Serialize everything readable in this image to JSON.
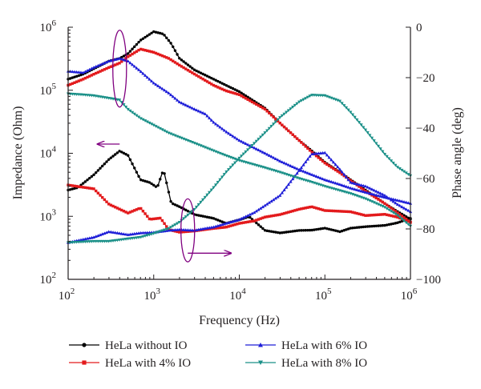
{
  "chart_data": {
    "type": "line",
    "xlabel": "Frequency (Hz)",
    "ylabel_left": "Impedance (Ohm)",
    "ylabel_right": "Phase angle (deg)",
    "x_scale": "log",
    "xlim": [
      100,
      1000000
    ],
    "ylim_left": [
      100,
      1000000
    ],
    "ylim_right": [
      -100,
      0
    ],
    "x_ticks": [
      {
        "value": 100,
        "base": "10",
        "exp": "2"
      },
      {
        "value": 1000,
        "base": "10",
        "exp": "3"
      },
      {
        "value": 10000,
        "base": "10",
        "exp": "4"
      },
      {
        "value": 100000,
        "base": "10",
        "exp": "5"
      },
      {
        "value": 1000000,
        "base": "10",
        "exp": "6"
      }
    ],
    "y_left_ticks": [
      {
        "value": 100,
        "base": "10",
        "exp": "2"
      },
      {
        "value": 1000,
        "base": "10",
        "exp": "3"
      },
      {
        "value": 10000,
        "base": "10",
        "exp": "4"
      },
      {
        "value": 100000,
        "base": "10",
        "exp": "5"
      },
      {
        "value": 1000000,
        "base": "10",
        "exp": "6"
      }
    ],
    "y_right_ticks": [
      {
        "value": 0,
        "label": "0"
      },
      {
        "value": -20,
        "label": "−20"
      },
      {
        "value": -40,
        "label": "−40"
      },
      {
        "value": -60,
        "label": "−60"
      },
      {
        "value": -80,
        "label": "−80"
      },
      {
        "value": -100,
        "label": "−100"
      }
    ],
    "grid": false,
    "legend_position": "bottom",
    "series": [
      {
        "name": "HeLa without IO",
        "color": "#000000",
        "marker": "circle",
        "impedance": [
          [
            100,
            150000
          ],
          [
            150,
            180000
          ],
          [
            200,
            220000
          ],
          [
            300,
            290000
          ],
          [
            400,
            320000
          ],
          [
            500,
            380000
          ],
          [
            700,
            620000
          ],
          [
            1000,
            850000
          ],
          [
            1300,
            780000
          ],
          [
            1600,
            550000
          ],
          [
            2000,
            320000
          ],
          [
            3000,
            210000
          ],
          [
            5000,
            150000
          ],
          [
            7000,
            120000
          ],
          [
            10000,
            95000
          ],
          [
            20000,
            52000
          ],
          [
            30000,
            30000
          ],
          [
            50000,
            16000
          ],
          [
            70000,
            11000
          ],
          [
            100000,
            7200
          ],
          [
            150000,
            5000
          ],
          [
            200000,
            3800
          ],
          [
            300000,
            2600
          ],
          [
            500000,
            1600
          ],
          [
            700000,
            1200
          ],
          [
            1000000,
            900
          ]
        ],
        "phase": [
          [
            100,
            -64.6
          ],
          [
            130,
            -63.6
          ],
          [
            200,
            -58.5
          ],
          [
            300,
            -52.4
          ],
          [
            400,
            -49.1
          ],
          [
            500,
            -50.8
          ],
          [
            700,
            -60.5
          ],
          [
            900,
            -61.6
          ],
          [
            1100,
            -63.6
          ],
          [
            1300,
            -56.4
          ],
          [
            1600,
            -69.7
          ],
          [
            2000,
            -71.2
          ],
          [
            3000,
            -74.3
          ],
          [
            5000,
            -75.8
          ],
          [
            7000,
            -77.8
          ],
          [
            10000,
            -76.4
          ],
          [
            13000,
            -75.1
          ],
          [
            20000,
            -80.6
          ],
          [
            30000,
            -81.6
          ],
          [
            50000,
            -80.6
          ],
          [
            70000,
            -80.5
          ],
          [
            100000,
            -79.7
          ],
          [
            150000,
            -81.1
          ],
          [
            200000,
            -79.7
          ],
          [
            300000,
            -79.1
          ],
          [
            500000,
            -78.6
          ],
          [
            700000,
            -77.6
          ],
          [
            1000000,
            -75.8
          ]
        ]
      },
      {
        "name": "HeLa with 4% IO",
        "color": "#e31a1c",
        "marker": "square",
        "impedance": [
          [
            100,
            120000
          ],
          [
            150,
            150000
          ],
          [
            200,
            180000
          ],
          [
            300,
            230000
          ],
          [
            400,
            270000
          ],
          [
            500,
            340000
          ],
          [
            700,
            450000
          ],
          [
            1000,
            400000
          ],
          [
            1500,
            320000
          ],
          [
            2000,
            250000
          ],
          [
            3000,
            180000
          ],
          [
            5000,
            120000
          ],
          [
            7000,
            98000
          ],
          [
            10000,
            85000
          ],
          [
            20000,
            50000
          ],
          [
            30000,
            30000
          ],
          [
            50000,
            16000
          ],
          [
            70000,
            10500
          ],
          [
            100000,
            7000
          ],
          [
            150000,
            4900
          ],
          [
            200000,
            3700
          ],
          [
            300000,
            2500
          ],
          [
            500000,
            1600
          ],
          [
            700000,
            1150
          ],
          [
            1000000,
            800
          ]
        ],
        "phase": [
          [
            100,
            -62.6
          ],
          [
            200,
            -64.1
          ],
          [
            300,
            -70.2
          ],
          [
            500,
            -73.7
          ],
          [
            700,
            -71.7
          ],
          [
            900,
            -76.2
          ],
          [
            1200,
            -75.7
          ],
          [
            1500,
            -80.3
          ],
          [
            2000,
            -81.3
          ],
          [
            3000,
            -80.8
          ],
          [
            5000,
            -79.8
          ],
          [
            7000,
            -79.3
          ],
          [
            10000,
            -77.8
          ],
          [
            15000,
            -76.8
          ],
          [
            20000,
            -75.3
          ],
          [
            30000,
            -74.3
          ],
          [
            50000,
            -72.2
          ],
          [
            70000,
            -71.2
          ],
          [
            100000,
            -72.7
          ],
          [
            200000,
            -73.2
          ],
          [
            300000,
            -74.7
          ],
          [
            500000,
            -74.2
          ],
          [
            700000,
            -75.3
          ],
          [
            1000000,
            -77.3
          ]
        ]
      },
      {
        "name": "HeLa with 6% IO",
        "color": "#1f1fd8",
        "marker": "triangle",
        "impedance": [
          [
            100,
            200000
          ],
          [
            150,
            190000
          ],
          [
            200,
            230000
          ],
          [
            300,
            290000
          ],
          [
            400,
            320000
          ],
          [
            500,
            290000
          ],
          [
            700,
            200000
          ],
          [
            1000,
            130000
          ],
          [
            1500,
            90000
          ],
          [
            2000,
            65000
          ],
          [
            3000,
            50000
          ],
          [
            4000,
            42000
          ],
          [
            5000,
            31000
          ],
          [
            7000,
            22000
          ],
          [
            10000,
            16000
          ],
          [
            20000,
            10000
          ],
          [
            30000,
            7500
          ],
          [
            50000,
            5500
          ],
          [
            70000,
            4600
          ],
          [
            100000,
            3800
          ],
          [
            150000,
            3200
          ],
          [
            200000,
            2800
          ],
          [
            300000,
            2400
          ],
          [
            500000,
            2000
          ],
          [
            700000,
            1800
          ],
          [
            1000000,
            1600
          ]
        ],
        "phase": [
          [
            100,
            -85.4
          ],
          [
            200,
            -83.3
          ],
          [
            300,
            -81.1
          ],
          [
            500,
            -82.3
          ],
          [
            700,
            -81.6
          ],
          [
            1000,
            -81.4
          ],
          [
            1500,
            -80.6
          ],
          [
            2000,
            -80.3
          ],
          [
            3000,
            -80.6
          ],
          [
            4000,
            -79.8
          ],
          [
            5000,
            -79.3
          ],
          [
            7000,
            -77.8
          ],
          [
            10000,
            -76.3
          ],
          [
            15000,
            -73.5
          ],
          [
            20000,
            -70.7
          ],
          [
            30000,
            -66.7
          ],
          [
            50000,
            -56.9
          ],
          [
            70000,
            -50.3
          ],
          [
            100000,
            -49.8
          ],
          [
            150000,
            -56.4
          ],
          [
            200000,
            -61.6
          ],
          [
            300000,
            -63.1
          ],
          [
            500000,
            -66.7
          ],
          [
            700000,
            -70.2
          ],
          [
            1000000,
            -73.2
          ]
        ]
      },
      {
        "name": "HeLa with 8% IO",
        "color": "#1b9088",
        "marker": "triangle-down",
        "impedance": [
          [
            100,
            88000
          ],
          [
            150,
            85000
          ],
          [
            200,
            82000
          ],
          [
            300,
            75000
          ],
          [
            400,
            70000
          ],
          [
            500,
            50000
          ],
          [
            700,
            36000
          ],
          [
            1000,
            28000
          ],
          [
            1500,
            21000
          ],
          [
            2000,
            18000
          ],
          [
            3000,
            14500
          ],
          [
            5000,
            11000
          ],
          [
            7000,
            9200
          ],
          [
            10000,
            7700
          ],
          [
            20000,
            5900
          ],
          [
            30000,
            5000
          ],
          [
            50000,
            4000
          ],
          [
            70000,
            3500
          ],
          [
            100000,
            3000
          ],
          [
            200000,
            2300
          ],
          [
            300000,
            1900
          ],
          [
            500000,
            1400
          ],
          [
            700000,
            1050
          ],
          [
            1000000,
            700
          ]
        ],
        "phase": [
          [
            100,
            -85.4
          ],
          [
            200,
            -84.9
          ],
          [
            300,
            -84.9
          ],
          [
            500,
            -83.9
          ],
          [
            700,
            -83.3
          ],
          [
            1000,
            -81.8
          ],
          [
            1500,
            -79.8
          ],
          [
            2000,
            -77.3
          ],
          [
            3000,
            -72.2
          ],
          [
            5000,
            -63.6
          ],
          [
            7000,
            -57.5
          ],
          [
            10000,
            -51.9
          ],
          [
            20000,
            -41.8
          ],
          [
            30000,
            -35.7
          ],
          [
            50000,
            -29.6
          ],
          [
            70000,
            -26.9
          ],
          [
            100000,
            -27.1
          ],
          [
            150000,
            -29.3
          ],
          [
            200000,
            -33.7
          ],
          [
            300000,
            -40.8
          ],
          [
            500000,
            -50.3
          ],
          [
            700000,
            -55.4
          ],
          [
            1000000,
            -58.9
          ]
        ]
      }
    ],
    "annotations": [
      {
        "type": "ellipse",
        "color": "#800080",
        "x": 400,
        "y_left": 220000,
        "rx_decades": 0.08,
        "ry_decades": 0.61
      },
      {
        "type": "ellipse",
        "color": "#800080",
        "x": 2500,
        "y_left": 600,
        "rx_decades": 0.08,
        "ry_decades": 0.5
      },
      {
        "type": "arrow",
        "color": "#800080",
        "from": [
          400,
          14000
        ],
        "to": [
          220,
          14000
        ],
        "axis": "left"
      },
      {
        "type": "arrow",
        "color": "#800080",
        "from": [
          2500,
          260
        ],
        "to": [
          8000,
          260
        ],
        "axis": "left"
      }
    ]
  }
}
